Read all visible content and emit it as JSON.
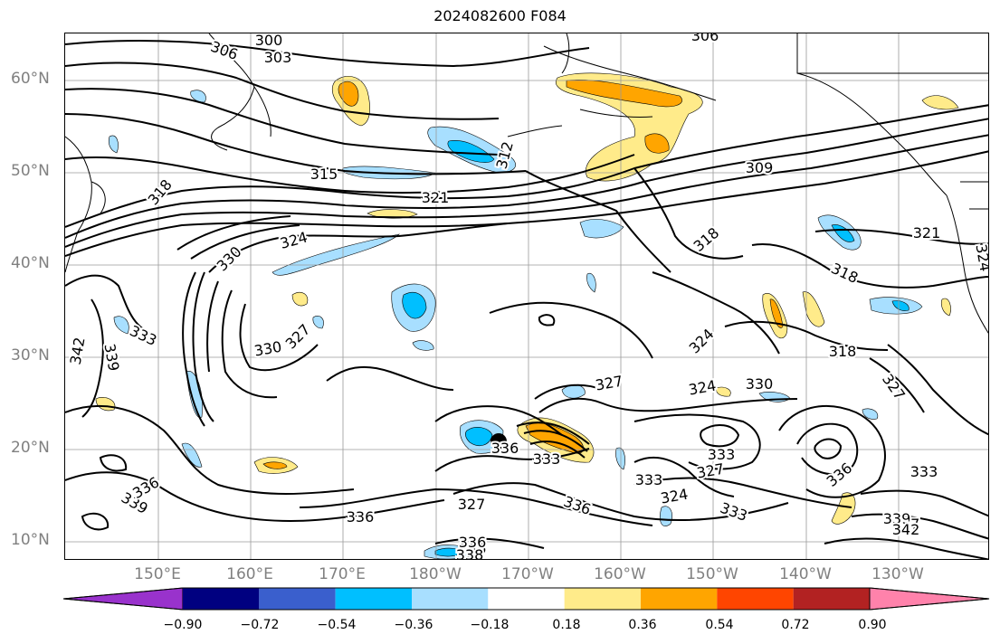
{
  "title": "2024082600 F084",
  "lat_labels": [
    "60°N",
    "50°N",
    "40°N",
    "30°N",
    "20°N",
    "10°N"
  ],
  "lon_labels": [
    "150°E",
    "160°E",
    "170°E",
    "180°W",
    "170°W",
    "160°W",
    "150°W",
    "140°W",
    "130°W"
  ],
  "colorbar": {
    "ticks": [
      "−0.90",
      "−0.72",
      "−0.54",
      "−0.36",
      "−0.18",
      "0.18",
      "0.36",
      "0.54",
      "0.72",
      "0.90"
    ],
    "colors": [
      "#9932CC",
      "#000080",
      "#3A5FCD",
      "#00BFFF",
      "#A8DFFF",
      "#FFFFFF",
      "#FFEB8A",
      "#FFA500",
      "#FF4500",
      "#B22222",
      "#FF82AB"
    ]
  },
  "contour_labels": [
    {
      "text": "300"
    },
    {
      "text": "306"
    },
    {
      "text": "303"
    },
    {
      "text": "306"
    },
    {
      "text": "312"
    },
    {
      "text": "315"
    },
    {
      "text": "321"
    },
    {
      "text": "309"
    },
    {
      "text": "318"
    },
    {
      "text": "324"
    },
    {
      "text": "330"
    },
    {
      "text": "318"
    },
    {
      "text": "321"
    },
    {
      "text": "318"
    },
    {
      "text": "324"
    },
    {
      "text": "333"
    },
    {
      "text": "342"
    },
    {
      "text": "339"
    },
    {
      "text": "330"
    },
    {
      "text": "327"
    },
    {
      "text": "324"
    },
    {
      "text": "327"
    },
    {
      "text": "324"
    },
    {
      "text": "330"
    },
    {
      "text": "318"
    },
    {
      "text": "327"
    },
    {
      "text": "336"
    },
    {
      "text": "333"
    },
    {
      "text": "333"
    },
    {
      "text": "327"
    },
    {
      "text": "333"
    },
    {
      "text": "324"
    },
    {
      "text": "327"
    },
    {
      "text": "336"
    },
    {
      "text": "333"
    },
    {
      "text": "336"
    },
    {
      "text": "339"
    },
    {
      "text": "336"
    },
    {
      "text": "327"
    },
    {
      "text": "333"
    },
    {
      "text": "336"
    },
    {
      "text": "336"
    },
    {
      "text": "339"
    },
    {
      "text": "342"
    },
    {
      "text": "336"
    },
    {
      "text": "338"
    }
  ]
}
